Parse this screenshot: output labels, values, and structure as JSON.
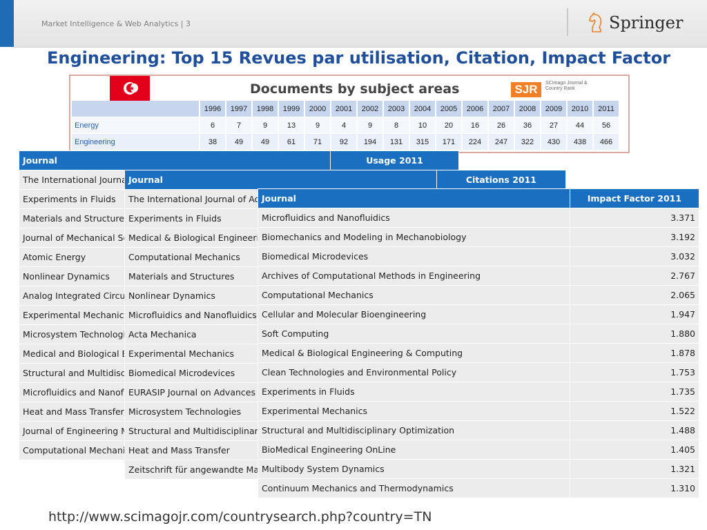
{
  "header": {
    "text": "Market Intelligence & Web Analytics | 3",
    "logo_text": "Springer"
  },
  "title": "Engineering: Top 15 Revues par utilisation, Citation, Impact Factor",
  "sjr": {
    "title": "Documents by subject areas",
    "logo": "SJR",
    "logo_sub": "SCImago Journal & Country Rank",
    "years": [
      "1996",
      "1997",
      "1998",
      "1999",
      "2000",
      "2001",
      "2002",
      "2003",
      "2004",
      "2005",
      "2006",
      "2007",
      "2008",
      "2009",
      "2010",
      "2011"
    ],
    "rows": [
      {
        "label": "Energy",
        "values": [
          "6",
          "7",
          "9",
          "13",
          "9",
          "4",
          "9",
          "8",
          "10",
          "20",
          "16",
          "26",
          "36",
          "27",
          "44",
          "56"
        ]
      },
      {
        "label": "Engineering",
        "values": [
          "38",
          "49",
          "49",
          "61",
          "71",
          "92",
          "194",
          "131",
          "315",
          "171",
          "224",
          "247",
          "322",
          "430",
          "438",
          "466"
        ]
      }
    ]
  },
  "usage_table": {
    "col_journal": "Journal",
    "col_value": "Usage 2011",
    "rows": [
      "The International Journal of Advanced Manufacturing Technology",
      "Experiments in Fluids",
      "Materials and Structures",
      "Journal of Mechanical Science and Technology",
      "Atomic Energy",
      "Nonlinear Dynamics",
      "Analog Integrated Circuits and Signal Processing",
      "Experimental Mechanics",
      "Microsystem Technologies",
      "Medical and Biological Engineering and Computing",
      "Structural and Multidisciplinary Optimization",
      "Microfluidics and Nanofluidics",
      "Heat and Mass Transfer",
      "Journal of Engineering Mathematics",
      "Computational Mechanics"
    ]
  },
  "citations_table": {
    "col_journal": "Journal",
    "col_value": "Citations 2011",
    "rows": [
      "The International Journal of Advanced Manufacturing Technology",
      "Experiments in Fluids",
      "Medical & Biological Engineering & Computing",
      "Computational Mechanics",
      "Materials and Structures",
      "Nonlinear Dynamics",
      "Microfluidics and Nanofluidics",
      "Acta Mechanica",
      "Experimental Mechanics",
      "Biomedical Microdevices",
      "EURASIP Journal on Advances in Signal Processing",
      "Microsystem Technologies",
      "Structural and Multidisciplinary Optimization",
      "Heat and Mass Transfer",
      "Zeitschrift für angewandte Mathematik und Physik"
    ]
  },
  "impact_table": {
    "col_journal": "Journal",
    "col_value": "Impact Factor 2011",
    "rows": [
      {
        "journal": "Microfluidics and Nanofluidics",
        "value": "3.371"
      },
      {
        "journal": "Biomechanics and Modeling in Mechanobiology",
        "value": "3.192"
      },
      {
        "journal": "Biomedical Microdevices",
        "value": "3.032"
      },
      {
        "journal": "Archives of Computational Methods in Engineering",
        "value": "2.767"
      },
      {
        "journal": "Computational Mechanics",
        "value": "2.065"
      },
      {
        "journal": "Cellular and Molecular Bioengineering",
        "value": "1.947"
      },
      {
        "journal": "Soft Computing",
        "value": "1.880"
      },
      {
        "journal": "Medical & Biological Engineering & Computing",
        "value": "1.878"
      },
      {
        "journal": "Clean Technologies and Environmental Policy",
        "value": "1.753"
      },
      {
        "journal": "Experiments in Fluids",
        "value": "1.735"
      },
      {
        "journal": "Experimental Mechanics",
        "value": "1.522"
      },
      {
        "journal": "Structural and Multidisciplinary Optimization",
        "value": "1.488"
      },
      {
        "journal": "BioMedical Engineering OnLine",
        "value": "1.405"
      },
      {
        "journal": "Multibody System Dynamics",
        "value": "1.321"
      },
      {
        "journal": "Continuum Mechanics and Thermodynamics",
        "value": "1.310"
      }
    ]
  },
  "footer_url": "http://www.scimagojr.com/countrysearch.php?country=TN",
  "colors": {
    "accent": "#1f6bb5",
    "title": "#1f4e9a",
    "table_header": "#1a6fc0",
    "table_row": "#ececec",
    "flag": "#e2001a",
    "sjr_orange": "#f07f26"
  }
}
